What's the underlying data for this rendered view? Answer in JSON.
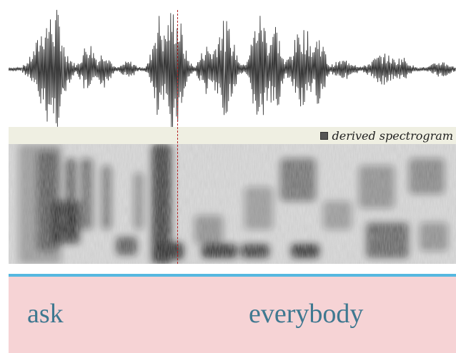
{
  "spectrogram": {
    "label": "derived spectrogram",
    "legend_icon": "square-swatch-icon"
  },
  "transcript": {
    "words": [
      "ask",
      "everybody"
    ]
  },
  "colors": {
    "waveform": "#383838",
    "cursor": "#b42323",
    "header_band": "#efefe2",
    "divider": "#56b8e0",
    "transcript_bg": "#f6d3d5",
    "transcript_text": "#3f7890"
  }
}
